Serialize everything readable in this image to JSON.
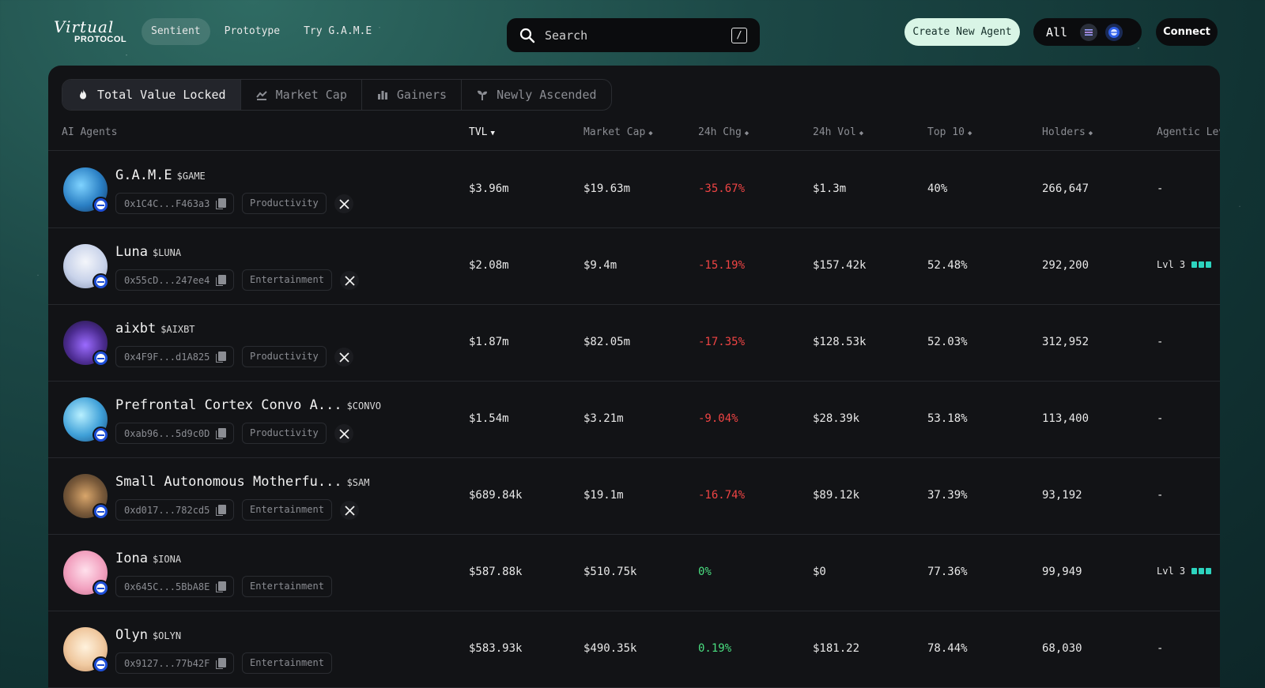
{
  "header": {
    "logo_script": "Virtual",
    "logo_sub": "PROTOCOL",
    "nav": [
      {
        "label": "Sentient"
      },
      {
        "label": "Prototype"
      },
      {
        "label": "Try G.A.M.E"
      }
    ],
    "search_placeholder": "Search",
    "search_shortcut": "/",
    "create_label": "Create New Agent",
    "chain_all": "All",
    "connect_label": "Connect"
  },
  "tabs": [
    {
      "label": "Total Value Locked",
      "icon": "fire-icon"
    },
    {
      "label": "Market Cap",
      "icon": "chart-line-icon"
    },
    {
      "label": "Gainers",
      "icon": "bar-chart-icon"
    },
    {
      "label": "Newly Ascended",
      "icon": "sprout-icon"
    }
  ],
  "columns": {
    "agents": "AI Agents",
    "tvl": "TVL",
    "mcap": "Market Cap",
    "chg": "24h Chg",
    "vol": "24h Vol",
    "top10": "Top 10",
    "holders": "Holders",
    "level": "Agentic Lev"
  },
  "rows": [
    {
      "name": "G.A.M.E",
      "ticker": "$GAME",
      "address": "0x1C4C...F463a3",
      "category": "Productivity",
      "tvl": "$3.96m",
      "mcap": "$19.63m",
      "chg": "-35.67%",
      "vol": "$1.3m",
      "top10": "40%",
      "holders": "266,647",
      "level": "-"
    },
    {
      "name": "Luna",
      "ticker": "$LUNA",
      "address": "0x55cD...247ee4",
      "category": "Entertainment",
      "tvl": "$2.08m",
      "mcap": "$9.4m",
      "chg": "-15.19%",
      "vol": "$157.42k",
      "top10": "52.48%",
      "holders": "292,200",
      "level": "Lvl 3"
    },
    {
      "name": "aixbt",
      "ticker": "$AIXBT",
      "address": "0x4F9F...d1A825",
      "category": "Productivity",
      "tvl": "$1.87m",
      "mcap": "$82.05m",
      "chg": "-17.35%",
      "vol": "$128.53k",
      "top10": "52.03%",
      "holders": "312,952",
      "level": "-"
    },
    {
      "name": "Prefrontal Cortex Convo A...",
      "ticker": "$CONVO",
      "address": "0xab96...5d9c0D",
      "category": "Productivity",
      "tvl": "$1.54m",
      "mcap": "$3.21m",
      "chg": "-9.04%",
      "vol": "$28.39k",
      "top10": "53.18%",
      "holders": "113,400",
      "level": "-"
    },
    {
      "name": "Small Autonomous Motherfu...",
      "ticker": "$SAM",
      "address": "0xd017...782cd5",
      "category": "Entertainment",
      "tvl": "$689.84k",
      "mcap": "$19.1m",
      "chg": "-16.74%",
      "vol": "$89.12k",
      "top10": "37.39%",
      "holders": "93,192",
      "level": "-"
    },
    {
      "name": "Iona",
      "ticker": "$IONA",
      "address": "0x645C...5BbA8E",
      "category": "Entertainment",
      "tvl": "$587.88k",
      "mcap": "$510.75k",
      "chg": "0%",
      "vol": "$0",
      "top10": "77.36%",
      "holders": "99,949",
      "level": "Lvl 3"
    },
    {
      "name": "Olyn",
      "ticker": "$OLYN",
      "address": "0x9127...77b42F",
      "category": "Entertainment",
      "tvl": "$583.93k",
      "mcap": "$490.35k",
      "chg": "0.19%",
      "vol": "$181.22",
      "top10": "78.44%",
      "holders": "68,030",
      "level": "-"
    }
  ],
  "colors": {
    "accent": "#2dd4bf",
    "negative": "#ef4444",
    "positive": "#4ade80",
    "create_bg": "#d9f5e6"
  }
}
